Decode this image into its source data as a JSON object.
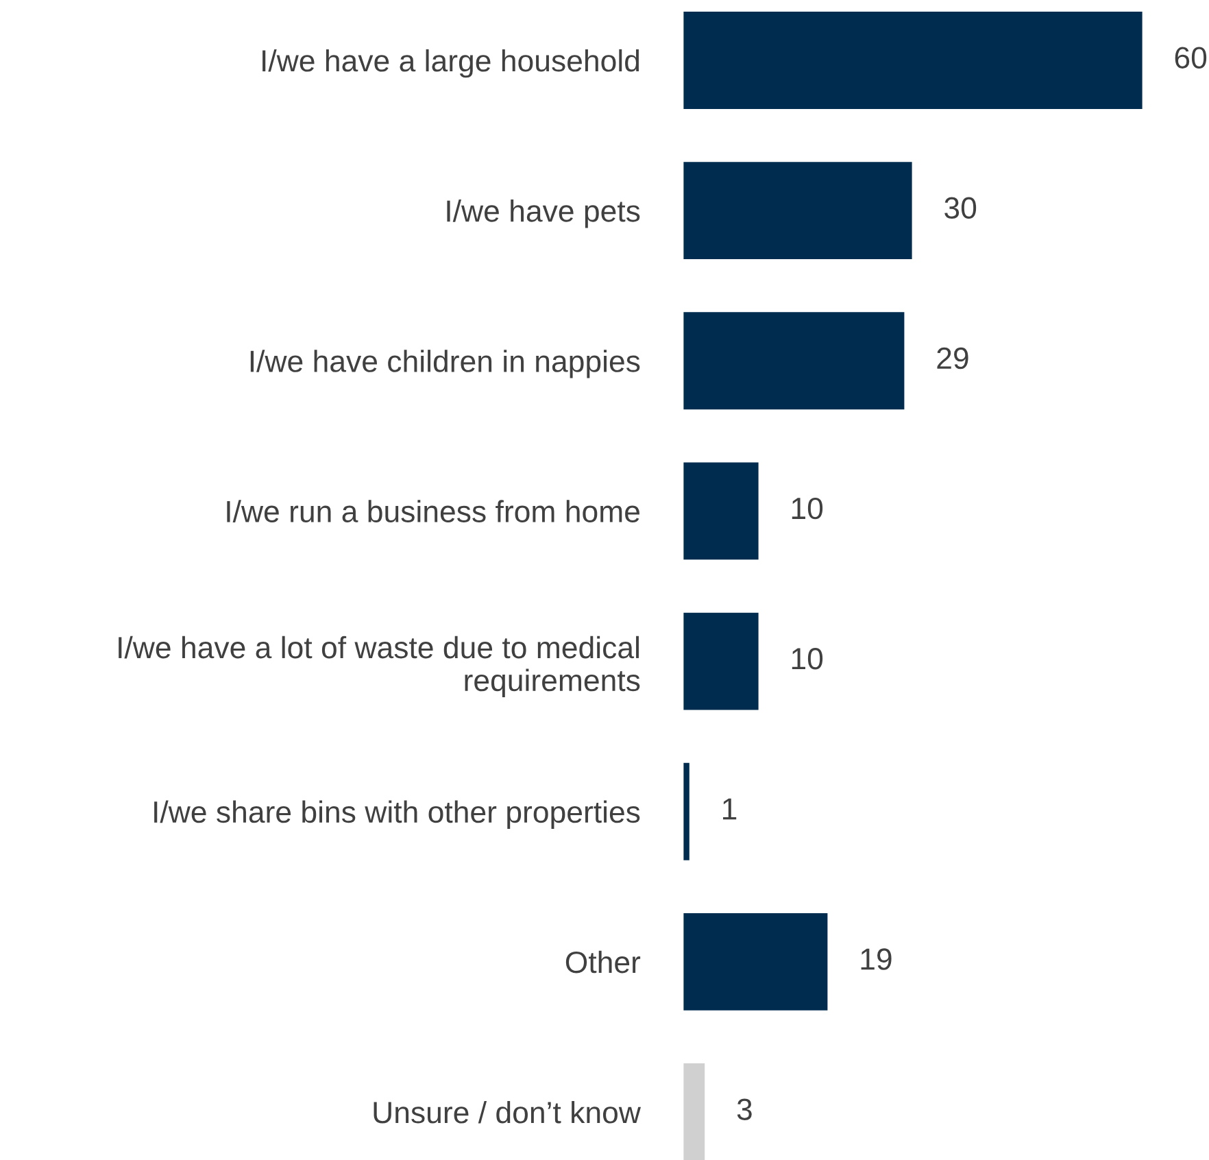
{
  "chart_data": {
    "type": "bar",
    "orientation": "horizontal",
    "categories": [
      "I/we have a large household",
      "I/we have pets",
      "I/we have children in nappies",
      "I/we run a business from home",
      "I/we have a lot of waste due to medical\nrequirements",
      "I/we share bins with other properties",
      "Other",
      "Unsure / don’t know"
    ],
    "values": [
      60,
      30,
      29,
      10,
      10,
      1,
      19,
      3
    ],
    "colors": [
      "#002d4f",
      "#002d4f",
      "#002d4f",
      "#002d4f",
      "#002d4f",
      "#002d4f",
      "#002d4f",
      "#d0d0d0"
    ],
    "data_labels": true
  }
}
